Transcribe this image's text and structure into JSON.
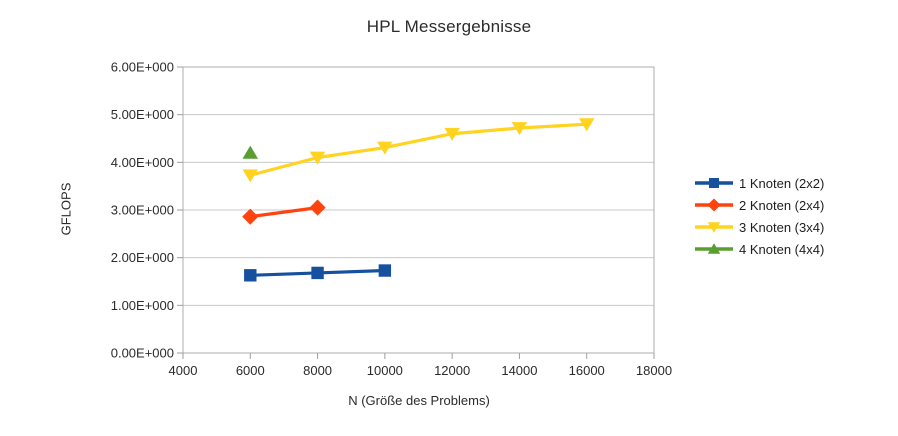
{
  "page": {
    "background": "#ffffff"
  },
  "chart_data": {
    "type": "line",
    "title": "HPL Messergebnisse",
    "xlabel": "N (Größe des Problems)",
    "ylabel": "GFLOPS",
    "xlim": [
      4000,
      18000
    ],
    "ylim": [
      0,
      6
    ],
    "x_ticks": [
      4000,
      6000,
      8000,
      10000,
      12000,
      14000,
      16000,
      18000
    ],
    "x_tick_labels": [
      "4000",
      "6000",
      "8000",
      "10000",
      "12000",
      "14000",
      "16000",
      "18000"
    ],
    "y_ticks": [
      0,
      1,
      2,
      3,
      4,
      5,
      6
    ],
    "y_tick_labels": [
      "0.00E+000",
      "1.00E+000",
      "2.00E+000",
      "3.00E+000",
      "4.00E+000",
      "5.00E+000",
      "6.00E+000"
    ],
    "grid": "horizontal",
    "legend_position": "right",
    "series": [
      {
        "name": "1 Knoten (2x2)",
        "color": "#15519f",
        "marker": "square",
        "x": [
          6000,
          8000,
          10000
        ],
        "y": [
          1.63,
          1.68,
          1.73
        ]
      },
      {
        "name": "2 Knoten (2x4)",
        "color": "#ff420e",
        "marker": "diamond",
        "x": [
          6000,
          8000
        ],
        "y": [
          2.86,
          3.05
        ]
      },
      {
        "name": "3 Knoten (3x4)",
        "color": "#ffd320",
        "marker": "triangle-down",
        "x": [
          6000,
          8000,
          10000,
          12000,
          14000,
          16000
        ],
        "y": [
          3.73,
          4.1,
          4.31,
          4.6,
          4.72,
          4.8
        ]
      },
      {
        "name": "4 Knoten (4x4)",
        "color": "#5a9e32",
        "marker": "triangle-up",
        "x": [
          6000
        ],
        "y": [
          4.2
        ]
      }
    ]
  },
  "style_colors": {
    "grid": "#c9c9c9",
    "frame": "#aeaeae",
    "tick": "#9e9e9e",
    "text": "#2b2b2b"
  }
}
